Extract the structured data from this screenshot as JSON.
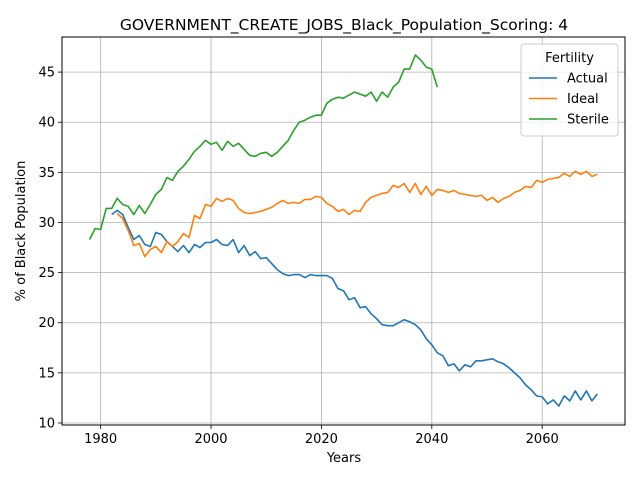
{
  "chart_data": {
    "type": "line",
    "title": "GOVERNMENT_CREATE_JOBS_Black_Population_Scoring: 4",
    "xlabel": "Years",
    "ylabel": "% of Black Population",
    "xlim": [
      1973,
      2075
    ],
    "ylim": [
      9.8,
      48.5
    ],
    "xticks": [
      1980,
      2000,
      2020,
      2040,
      2060
    ],
    "yticks": [
      10,
      15,
      20,
      25,
      30,
      35,
      40,
      45
    ],
    "grid": true,
    "legend": {
      "title": "Fertility",
      "placement": "top-right"
    },
    "series": [
      {
        "name": "Actual",
        "color": "#1f77b4",
        "x": [
          1982,
          1983,
          1984,
          1985,
          1986,
          1987,
          1988,
          1989,
          1990,
          1991,
          1992,
          1993,
          1994,
          1995,
          1996,
          1997,
          1998,
          1999,
          2000,
          2001,
          2002,
          2003,
          2004,
          2005,
          2006,
          2007,
          2008,
          2009,
          2010,
          2011,
          2012,
          2013,
          2014,
          2015,
          2016,
          2017,
          2018,
          2019,
          2020,
          2021,
          2022,
          2023,
          2024,
          2025,
          2026,
          2027,
          2028,
          2029,
          2030,
          2031,
          2032,
          2033,
          2034,
          2035,
          2036,
          2037,
          2038,
          2039,
          2040,
          2041,
          2042,
          2043,
          2044,
          2045,
          2046,
          2047,
          2048,
          2049,
          2050,
          2051,
          2052,
          2053,
          2054,
          2055,
          2056,
          2057,
          2058,
          2059,
          2060,
          2061,
          2062,
          2063,
          2064,
          2065,
          2066,
          2067,
          2068,
          2069,
          2070
        ],
        "y": [
          30.8,
          31.2,
          30.8,
          29.5,
          28.3,
          28.7,
          27.8,
          27.6,
          29.0,
          28.8,
          28.1,
          27.6,
          27.1,
          27.7,
          27.0,
          27.8,
          27.5,
          28.0,
          28.0,
          28.3,
          27.8,
          27.7,
          28.3,
          27.0,
          27.7,
          26.7,
          27.1,
          26.4,
          26.5,
          25.9,
          25.3,
          24.9,
          24.7,
          24.8,
          24.8,
          24.5,
          24.8,
          24.7,
          24.7,
          24.7,
          24.4,
          23.4,
          23.2,
          22.3,
          22.5,
          21.5,
          21.6,
          20.9,
          20.4,
          19.8,
          19.7,
          19.7,
          20.0,
          20.3,
          20.1,
          19.8,
          19.3,
          18.4,
          17.8,
          17.0,
          16.7,
          15.7,
          15.9,
          15.2,
          15.8,
          15.6,
          16.2,
          16.2,
          16.3,
          16.4,
          16.1,
          15.9,
          15.5,
          15.0,
          14.5,
          13.8,
          13.3,
          12.7,
          12.6,
          11.9,
          12.3,
          11.7,
          12.7,
          12.2,
          13.2,
          12.3,
          13.2,
          12.2,
          12.9
        ]
      },
      {
        "name": "Ideal",
        "color": "#ff7f0e",
        "x": [
          1983,
          1984,
          1985,
          1986,
          1987,
          1988,
          1989,
          1990,
          1991,
          1992,
          1993,
          1994,
          1995,
          1996,
          1997,
          1998,
          1999,
          2000,
          2001,
          2002,
          2003,
          2004,
          2005,
          2006,
          2007,
          2008,
          2009,
          2010,
          2011,
          2012,
          2013,
          2014,
          2015,
          2016,
          2017,
          2018,
          2019,
          2020,
          2021,
          2022,
          2023,
          2024,
          2025,
          2026,
          2027,
          2028,
          2029,
          2030,
          2031,
          2032,
          2033,
          2034,
          2035,
          2036,
          2037,
          2038,
          2039,
          2040,
          2041,
          2042,
          2043,
          2044,
          2045,
          2046,
          2047,
          2048,
          2049,
          2050,
          2051,
          2052,
          2053,
          2054,
          2055,
          2056,
          2057,
          2058,
          2059,
          2060,
          2061,
          2062,
          2063,
          2064,
          2065,
          2066,
          2067,
          2068,
          2069,
          2070
        ],
        "y": [
          30.9,
          30.4,
          29.2,
          27.7,
          27.9,
          26.6,
          27.3,
          27.6,
          27.0,
          28.1,
          27.6,
          28.1,
          28.9,
          28.5,
          30.7,
          30.4,
          31.8,
          31.6,
          32.4,
          32.1,
          32.4,
          32.2,
          31.4,
          31.0,
          30.9,
          31.0,
          31.1,
          31.3,
          31.5,
          31.9,
          32.2,
          31.9,
          32.0,
          31.9,
          32.3,
          32.3,
          32.6,
          32.5,
          31.9,
          31.6,
          31.1,
          31.3,
          30.8,
          31.2,
          31.1,
          32.0,
          32.5,
          32.7,
          32.9,
          33.0,
          33.7,
          33.5,
          33.9,
          33.0,
          33.9,
          32.8,
          33.6,
          32.7,
          33.3,
          33.2,
          33.0,
          33.2,
          32.9,
          32.8,
          32.7,
          32.6,
          32.7,
          32.2,
          32.5,
          32.0,
          32.4,
          32.6,
          33.0,
          33.2,
          33.6,
          33.5,
          34.2,
          34.0,
          34.3,
          34.4,
          34.5,
          34.9,
          34.6,
          35.1,
          34.8,
          35.1,
          34.6,
          34.8
        ]
      },
      {
        "name": "Sterile",
        "color": "#2ca02c",
        "x": [
          1978,
          1979,
          1980,
          1981,
          1982,
          1983,
          1984,
          1985,
          1986,
          1987,
          1988,
          1989,
          1990,
          1991,
          1992,
          1993,
          1994,
          1995,
          1996,
          1997,
          1998,
          1999,
          2000,
          2001,
          2002,
          2003,
          2004,
          2005,
          2006,
          2007,
          2008,
          2009,
          2010,
          2011,
          2012,
          2013,
          2014,
          2015,
          2016,
          2017,
          2018,
          2019,
          2020,
          2021,
          2022,
          2023,
          2024,
          2025,
          2026,
          2027,
          2028,
          2029,
          2030,
          2031,
          2032,
          2033,
          2034,
          2035,
          2036,
          2037,
          2038,
          2039,
          2040,
          2041
        ],
        "y": [
          28.3,
          29.4,
          29.3,
          31.4,
          31.4,
          32.4,
          31.8,
          31.6,
          30.8,
          31.7,
          30.9,
          31.8,
          32.8,
          33.3,
          34.5,
          34.2,
          35.1,
          35.6,
          36.3,
          37.1,
          37.6,
          38.2,
          37.8,
          38.0,
          37.2,
          38.1,
          37.6,
          37.9,
          37.3,
          36.7,
          36.6,
          36.9,
          37.0,
          36.6,
          37.0,
          37.6,
          38.2,
          39.2,
          40.0,
          40.2,
          40.5,
          40.7,
          40.7,
          41.9,
          42.3,
          42.5,
          42.4,
          42.7,
          43.0,
          42.8,
          42.6,
          43.0,
          42.1,
          43.0,
          42.5,
          43.5,
          44.0,
          45.3,
          45.3,
          46.7,
          46.2,
          45.5,
          45.3,
          43.5
        ]
      }
    ]
  }
}
